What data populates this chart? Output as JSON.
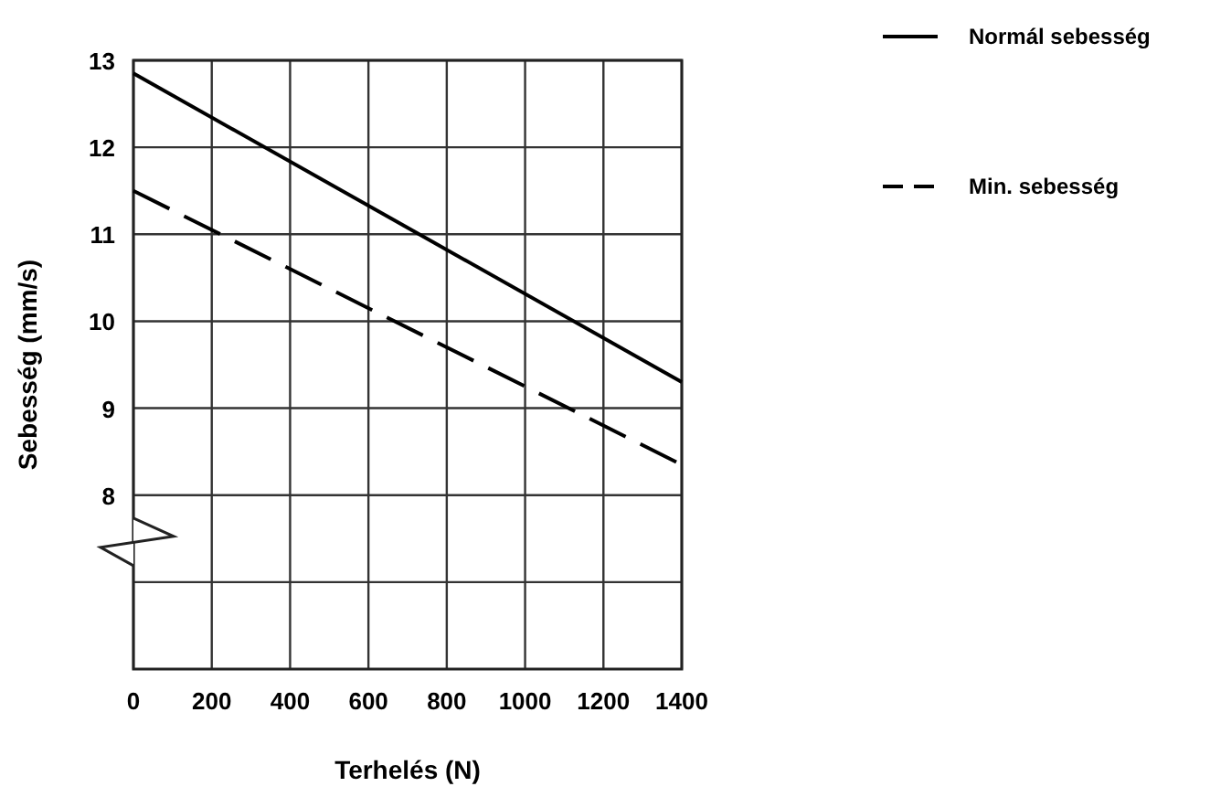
{
  "chart_data": {
    "type": "line",
    "xlabel": "Terhelés (N)",
    "ylabel": "Sebesség (mm/s)",
    "x": [
      0,
      1400
    ],
    "series": [
      {
        "name": "Normál sebesség",
        "color": "#000000",
        "values": [
          12.85,
          9.3
        ],
        "line_style": "solid"
      },
      {
        "name": "Min. sebesség",
        "color": "#000000",
        "values": [
          11.5,
          8.35
        ],
        "line_style": "dashed"
      }
    ],
    "xlim": [
      0,
      1400
    ],
    "xticks": [
      0,
      200,
      400,
      600,
      800,
      1000,
      1200,
      1400
    ],
    "ylim": [
      6,
      13
    ],
    "yticks": [
      {
        "value": 7,
        "label": null
      },
      8,
      9,
      10,
      11,
      12,
      13
    ],
    "grid": true,
    "legend": "top right",
    "marker": "none"
  }
}
